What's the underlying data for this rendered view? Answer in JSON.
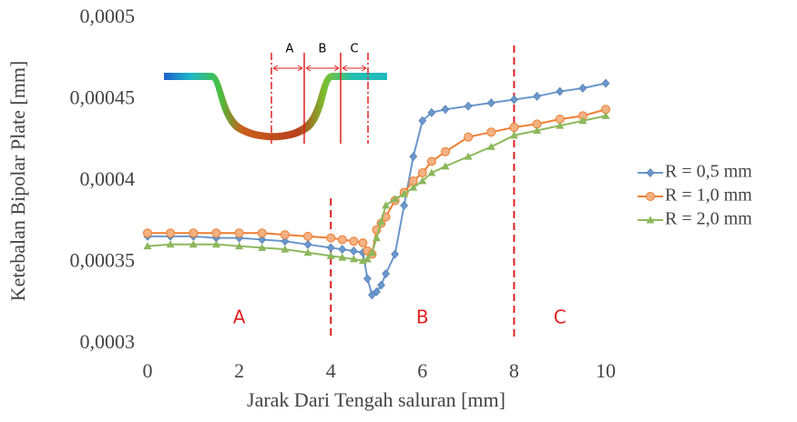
{
  "chart_data": {
    "type": "line",
    "x_label": "Jarak Dari Tengah saluran [mm]",
    "y_label": "Ketebalan Bipolar Plate [mm]",
    "x": [
      0,
      0.5,
      1,
      1.5,
      2,
      2.5,
      3,
      3.5,
      4,
      4.25,
      4.5,
      4.7,
      4.8,
      4.9,
      5,
      5.1,
      5.2,
      5.4,
      5.6,
      5.8,
      6,
      6.2,
      6.5,
      7,
      7.5,
      8,
      8.5,
      9,
      9.5,
      10
    ],
    "series": [
      {
        "name": "R = 0,5 mm",
        "color": "#6a97cc",
        "marker": "diamond",
        "values": [
          0.000366,
          0.000366,
          0.000366,
          0.000365,
          0.000365,
          0.000364,
          0.000363,
          0.000361,
          0.000359,
          0.000358,
          0.000357,
          0.000356,
          0.00034,
          0.00033,
          0.000332,
          0.000336,
          0.000343,
          0.000355,
          0.000385,
          0.000415,
          0.000437,
          0.000442,
          0.000444,
          0.000446,
          0.000448,
          0.00045,
          0.000452,
          0.000455,
          0.000457,
          0.00046
        ]
      },
      {
        "name": "R = 1,0 mm",
        "color": "#ed7d31",
        "marker": "circle",
        "values": [
          0.000368,
          0.000368,
          0.000368,
          0.000368,
          0.000368,
          0.000368,
          0.000367,
          0.000366,
          0.000365,
          0.000364,
          0.000363,
          0.000362,
          0.000357,
          0.000355,
          0.00037,
          0.000374,
          0.000378,
          0.000388,
          0.000393,
          0.0004,
          0.000405,
          0.000412,
          0.000418,
          0.000427,
          0.00043,
          0.000433,
          0.000435,
          0.000438,
          0.00044,
          0.000444
        ]
      },
      {
        "name": "R = 2,0 mm",
        "color": "#8cb85c",
        "marker": "triangle",
        "values": [
          0.00036,
          0.000361,
          0.000361,
          0.000361,
          0.00036,
          0.000359,
          0.000358,
          0.000356,
          0.000354,
          0.000353,
          0.000352,
          0.000351,
          0.000352,
          0.000356,
          0.000365,
          0.000375,
          0.000385,
          0.000389,
          0.000392,
          0.000396,
          0.0004,
          0.000405,
          0.000409,
          0.000415,
          0.000421,
          0.000428,
          0.000431,
          0.000434,
          0.000437,
          0.00044
        ]
      }
    ],
    "xlim": [
      0,
      10
    ],
    "xticks": [
      0,
      2,
      4,
      6,
      8,
      10
    ],
    "ylim": [
      0.0003,
      0.0005
    ],
    "yticks": [
      {
        "value": 0.0003,
        "label": "0,0003"
      },
      {
        "value": 0.00035,
        "label": "0,00035"
      },
      {
        "value": 0.0004,
        "label": "0,0004"
      },
      {
        "value": 0.00045,
        "label": "0,00045"
      },
      {
        "value": 0.0005,
        "label": "0,0005"
      }
    ],
    "grid": false,
    "legend": "right",
    "dividers": [
      4,
      8
    ],
    "regions": [
      "A",
      "B",
      "C"
    ],
    "inset_labels": [
      "A",
      "B",
      "C"
    ]
  }
}
